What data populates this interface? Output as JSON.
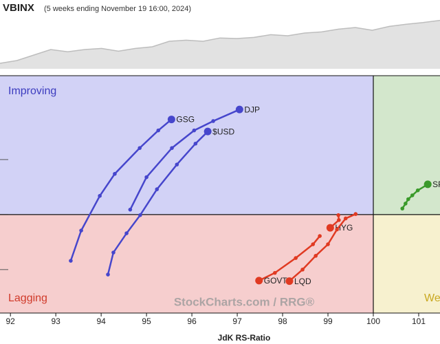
{
  "chart_data": {
    "type": "rrg",
    "benchmark": {
      "name": "VBINX",
      "subtitle": "(5 weeks ending November 19 16:00, 2024)",
      "values": [
        10,
        15,
        25,
        35,
        31,
        35,
        37,
        32,
        37,
        40,
        50,
        52,
        50,
        56,
        55,
        57,
        62,
        60,
        65,
        67,
        72,
        75,
        70,
        77,
        81,
        84,
        88
      ],
      "ylim": [
        0,
        100
      ]
    },
    "x_label": "JdK RS-Ratio",
    "xlim": [
      91.77,
      101.47
    ],
    "ylim": [
      98.21,
      102.525
    ],
    "xticks": [
      92,
      93,
      94,
      95,
      96,
      97,
      98,
      99,
      100,
      101
    ],
    "yticks": [
      99,
      100,
      101
    ],
    "quadrant_center": {
      "x": 100,
      "y": 100
    },
    "quadrants": {
      "improving": "Improving",
      "lagging": "Lagging",
      "weakening": "Weakening"
    },
    "watermark": "StockCharts.com / RRG®",
    "series": [
      {
        "name": "GSG",
        "color": "#4646cc",
        "x": [
          93.33,
          93.56,
          93.97,
          94.3,
          94.85,
          95.26,
          95.55
        ],
        "y": [
          99.16,
          99.71,
          100.34,
          100.74,
          101.21,
          101.53,
          101.73
        ]
      },
      {
        "name": "DJP",
        "color": "#4646cc",
        "x": [
          94.64,
          95.0,
          95.56,
          96.05,
          96.47,
          97.05
        ],
        "y": [
          100.09,
          100.68,
          101.21,
          101.53,
          101.7,
          101.91
        ]
      },
      {
        "name": "$USD",
        "color": "#4646cc",
        "x": [
          94.15,
          94.27,
          94.56,
          94.86,
          95.23,
          95.67,
          96.08,
          96.35
        ],
        "y": [
          98.91,
          99.31,
          99.66,
          99.99,
          100.46,
          100.91,
          101.29,
          101.51
        ]
      },
      {
        "name": "HYG",
        "color": "#e03a22",
        "x": [
          99.23,
          99.24,
          99.05
        ],
        "y": [
          99.99,
          99.9,
          99.76
        ]
      },
      {
        "name": "GOVT",
        "color": "#e03a22",
        "x": [
          98.82,
          98.67,
          98.29,
          97.83,
          97.48
        ],
        "y": [
          99.61,
          99.46,
          99.21,
          98.94,
          98.8
        ]
      },
      {
        "name": "LQD",
        "color": "#e03a22",
        "x": [
          99.61,
          99.39,
          99.2,
          99.0,
          98.73,
          98.44,
          98.15
        ],
        "y": [
          100.01,
          99.93,
          99.73,
          99.46,
          99.25,
          99.0,
          98.79
        ]
      },
      {
        "name": "SPY",
        "color": "#3a9a2a",
        "x": [
          100.64,
          100.71,
          100.77,
          100.86,
          100.98,
          101.2
        ],
        "y": [
          100.11,
          100.2,
          100.28,
          100.35,
          100.44,
          100.55
        ]
      }
    ]
  }
}
